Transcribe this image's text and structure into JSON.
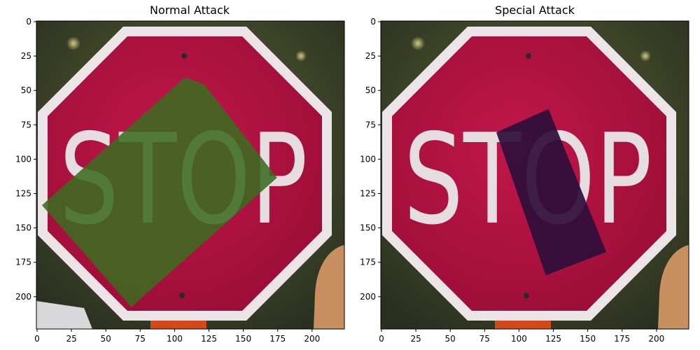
{
  "panels": [
    {
      "id": "normal",
      "title": "Normal Attack",
      "sign_text": "STOP",
      "x_ticks": [
        0,
        25,
        50,
        75,
        100,
        125,
        150,
        175,
        200
      ],
      "y_ticks": [
        0,
        25,
        50,
        75,
        100,
        125,
        150,
        175,
        200
      ],
      "x_tick_labels": [
        "0",
        "25",
        "50",
        "75",
        "100",
        "125",
        "150",
        "175",
        "200"
      ],
      "y_tick_labels": [
        "0",
        "25",
        "50",
        "75",
        "100",
        "125",
        "150",
        "175",
        "200"
      ],
      "patch_color": "#3c6b1f",
      "patch_opacity": 0.88,
      "patch_points": [
        [
          108,
          41
        ],
        [
          122,
          46
        ],
        [
          175,
          114
        ],
        [
          69,
          208
        ],
        [
          4,
          134
        ]
      ]
    },
    {
      "id": "special",
      "title": "Special Attack",
      "sign_text": "STOP",
      "x_ticks": [
        0,
        25,
        50,
        75,
        100,
        125,
        150,
        175,
        200
      ],
      "y_ticks": [
        0,
        25,
        50,
        75,
        100,
        125,
        150,
        175,
        200
      ],
      "x_tick_labels": [
        "0",
        "25",
        "50",
        "75",
        "100",
        "125",
        "150",
        "175",
        "200"
      ],
      "y_tick_labels": [
        "0",
        "25",
        "50",
        "75",
        "100",
        "125",
        "150",
        "175",
        "200"
      ],
      "patch_color": "#2e0f3a",
      "patch_opacity": 0.93,
      "patch_points": [
        [
          84,
          81
        ],
        [
          122,
          64
        ],
        [
          164,
          168
        ],
        [
          120,
          185
        ]
      ]
    }
  ],
  "image_extent": [
    224,
    224
  ],
  "colors": {
    "sign_red": "#b0123f",
    "sign_border": "#ece4e6",
    "letters": "#e6dde1",
    "background": "#4a4a30"
  }
}
